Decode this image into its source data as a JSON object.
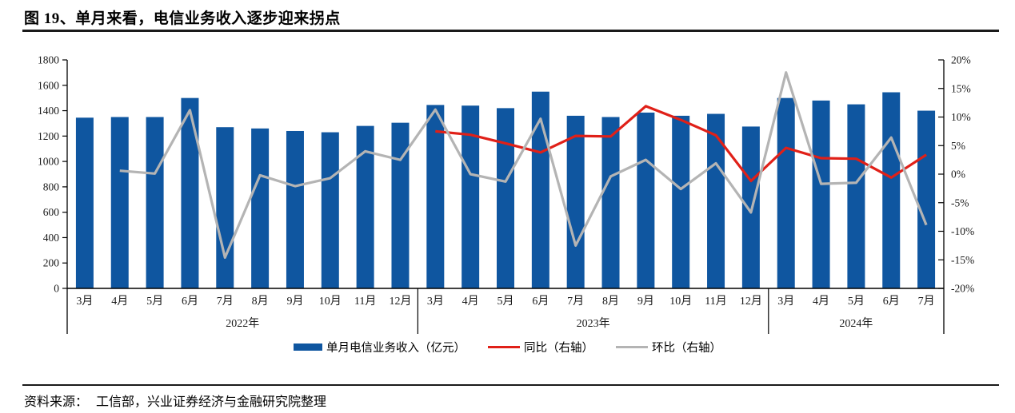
{
  "page": {
    "title": "图 19、单月来看，电信业务收入逐步迎来拐点",
    "source_label": "资料来源：",
    "source_text": "工信部，兴业证券经济与金融研究院整理"
  },
  "chart_data": {
    "type": "bar",
    "subtype": "combo-bar-line",
    "title": "图 19、单月来看，电信业务收入逐步迎来拐点",
    "grid": false,
    "legend_position": "bottom",
    "left_axis": {
      "min": 0,
      "max": 1800,
      "step": 200,
      "ticks": [
        "1800",
        "1600",
        "1400",
        "1200",
        "1000",
        "800",
        "600",
        "400",
        "200",
        "0"
      ]
    },
    "right_axis": {
      "min": -20,
      "max": 20,
      "step": 5,
      "unit": "%",
      "ticks": [
        "20%",
        "15%",
        "10%",
        "5%",
        "0%",
        "-5%",
        "-10%",
        "-15%",
        "-20%"
      ]
    },
    "groups": [
      {
        "label": "2022年",
        "months": [
          "3月",
          "4月",
          "5月",
          "6月",
          "7月",
          "8月",
          "9月",
          "10月",
          "11月",
          "12月"
        ]
      },
      {
        "label": "2023年",
        "months": [
          "3月",
          "4月",
          "5月",
          "6月",
          "7月",
          "8月",
          "9月",
          "10月",
          "11月",
          "12月"
        ]
      },
      {
        "label": "2024年",
        "months": [
          "3月",
          "4月",
          "5月",
          "6月",
          "7月"
        ]
      }
    ],
    "bar_series": {
      "name": "单月电信业务收入（亿元）",
      "axis": "left",
      "color": "#0F56A0",
      "values": [
        1345,
        1350,
        1350,
        1500,
        1270,
        1260,
        1240,
        1230,
        1280,
        1305,
        1445,
        1440,
        1420,
        1550,
        1360,
        1350,
        1385,
        1360,
        1375,
        1275,
        1500,
        1480,
        1450,
        1545,
        1400
      ]
    },
    "line_series": [
      {
        "name": "同比（右轴）",
        "axis": "right",
        "color": "#E02018",
        "values": [
          null,
          null,
          null,
          null,
          null,
          null,
          null,
          null,
          null,
          null,
          7.5,
          6.9,
          5.4,
          3.8,
          6.7,
          6.6,
          11.9,
          9.5,
          6.8,
          -1.2,
          4.6,
          2.8,
          2.7,
          -0.6,
          3.4
        ]
      },
      {
        "name": "环比（右轴）",
        "axis": "right",
        "color": "#B4B4B4",
        "values": [
          null,
          0.6,
          0.1,
          11.2,
          -14.6,
          -0.2,
          -2.1,
          -0.7,
          4.0,
          2.5,
          11.3,
          0.0,
          -1.3,
          9.7,
          -12.5,
          -0.4,
          2.5,
          -2.6,
          1.9,
          -6.7,
          17.8,
          -1.7,
          -1.5,
          6.4,
          -8.9
        ]
      }
    ]
  }
}
